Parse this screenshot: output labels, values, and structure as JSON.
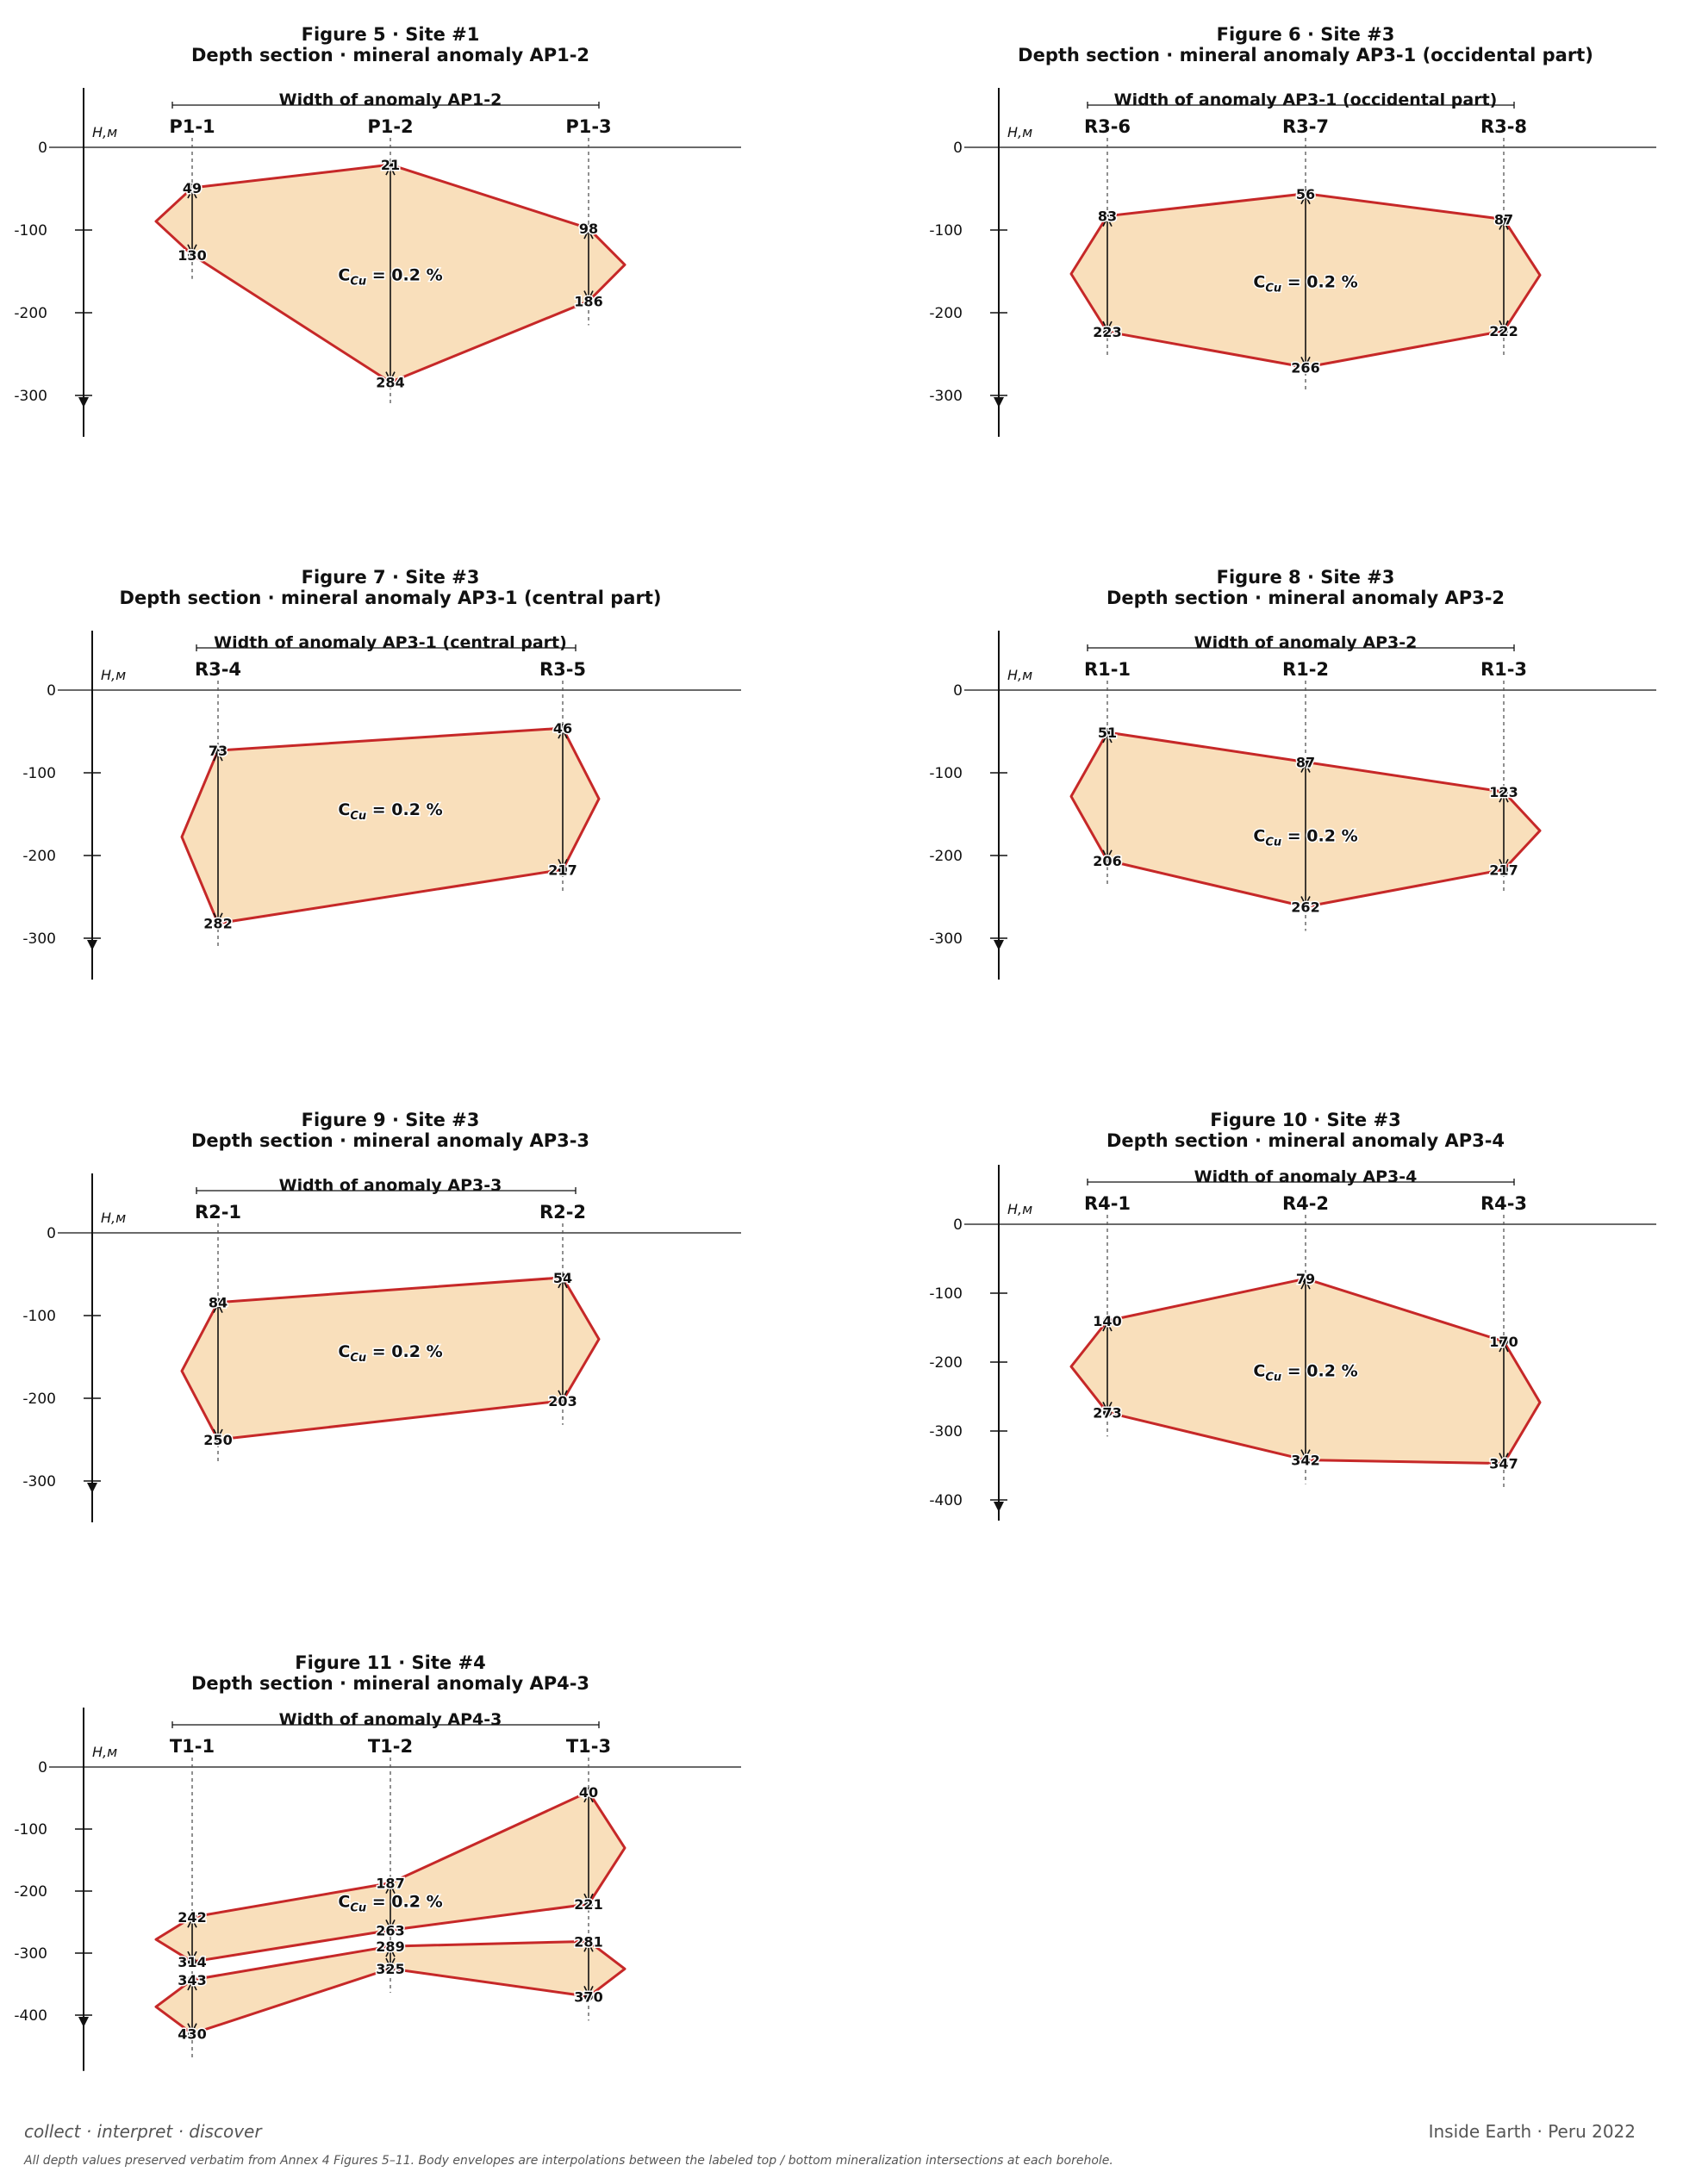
{
  "axis_title": "H,м",
  "concentration_label": {
    "prefix": "C",
    "subscript": "Cu",
    "suffix": " = 0.2 %"
  },
  "colors": {
    "fill": "#f9dfbb",
    "outline": "#c62828",
    "ink": "#111111",
    "guide": "#555555"
  },
  "tagline": "collect · interpret · discover",
  "brand": "Inside Earth · Peru 2022",
  "footnote": "All depth values preserved verbatim from Annex 4 Figures 5–11. Body envelopes are interpolations between the labeled top / bottom mineralization intersections at each borehole.",
  "figures": [
    {
      "title": "Figure 5 · Site #1",
      "subtitle": "Depth section · mineral anomaly AP1-2",
      "width_label": "Width of anomaly  AP1-2",
      "chart_data": {
        "type": "depth-section",
        "y_ticks": [
          0,
          -100,
          -200,
          -300
        ],
        "boreholes": [
          "P1-1",
          "P1-2",
          "P1-3"
        ],
        "bodies": [
          {
            "top": [
              49,
              21,
              98
            ],
            "bottom": [
              130,
              284,
              186
            ]
          }
        ]
      }
    },
    {
      "title": "Figure 6 · Site #3",
      "subtitle": "Depth section · mineral anomaly AP3-1 (occidental part)",
      "width_label": "Width of anomaly  AP3-1 (occidental part)",
      "chart_data": {
        "type": "depth-section",
        "y_ticks": [
          0,
          -100,
          -200,
          -300
        ],
        "boreholes": [
          "R3-6",
          "R3-7",
          "R3-8"
        ],
        "bodies": [
          {
            "top": [
              83,
              56,
              87
            ],
            "bottom": [
              223,
              266,
              222
            ]
          }
        ]
      }
    },
    {
      "title": "Figure 7 · Site #3",
      "subtitle": "Depth section · mineral anomaly AP3-1 (central part)",
      "width_label": "Width of anomaly  AP3-1 (central part)",
      "chart_data": {
        "type": "depth-section",
        "y_ticks": [
          0,
          -100,
          -200,
          -300
        ],
        "boreholes": [
          "R3-4",
          "R3-5"
        ],
        "bodies": [
          {
            "top": [
              73,
              46
            ],
            "bottom": [
              282,
              217
            ]
          }
        ]
      }
    },
    {
      "title": "Figure 8 · Site #3",
      "subtitle": "Depth section · mineral anomaly AP3-2",
      "width_label": "Width of anomaly  AP3-2",
      "chart_data": {
        "type": "depth-section",
        "y_ticks": [
          0,
          -100,
          -200,
          -300
        ],
        "boreholes": [
          "R1-1",
          "R1-2",
          "R1-3"
        ],
        "bodies": [
          {
            "top": [
              51,
              87,
              123
            ],
            "bottom": [
              206,
              262,
              217
            ]
          }
        ]
      }
    },
    {
      "title": "Figure 9 · Site #3",
      "subtitle": "Depth section · mineral anomaly AP3-3",
      "width_label": "Width of anomaly  AP3-3",
      "chart_data": {
        "type": "depth-section",
        "y_ticks": [
          0,
          -100,
          -200,
          -300
        ],
        "boreholes": [
          "R2-1",
          "R2-2"
        ],
        "bodies": [
          {
            "top": [
              84,
              54
            ],
            "bottom": [
              250,
              203
            ]
          }
        ]
      }
    },
    {
      "title": "Figure 10 · Site #3",
      "subtitle": "Depth section · mineral anomaly AP3-4",
      "width_label": "Width of anomaly  AP3-4",
      "chart_data": {
        "type": "depth-section",
        "y_ticks": [
          0,
          -100,
          -200,
          -300,
          -400
        ],
        "boreholes": [
          "R4-1",
          "R4-2",
          "R4-3"
        ],
        "bodies": [
          {
            "top": [
              140,
              79,
              170
            ],
            "bottom": [
              273,
              342,
              347
            ]
          }
        ]
      }
    },
    {
      "title": "Figure 11 · Site #4",
      "subtitle": "Depth section · mineral anomaly AP4-3",
      "width_label": "Width of anomaly  AP4-3",
      "chart_data": {
        "type": "depth-section",
        "y_ticks": [
          0,
          -100,
          -200,
          -300,
          -400
        ],
        "boreholes": [
          "T1-1",
          "T1-2",
          "T1-3"
        ],
        "bodies": [
          {
            "top": [
              242,
              187,
              40
            ],
            "bottom": [
              314,
              263,
              221
            ]
          },
          {
            "top": [
              343,
              289,
              281
            ],
            "bottom": [
              430,
              325,
              370
            ]
          }
        ]
      }
    }
  ]
}
